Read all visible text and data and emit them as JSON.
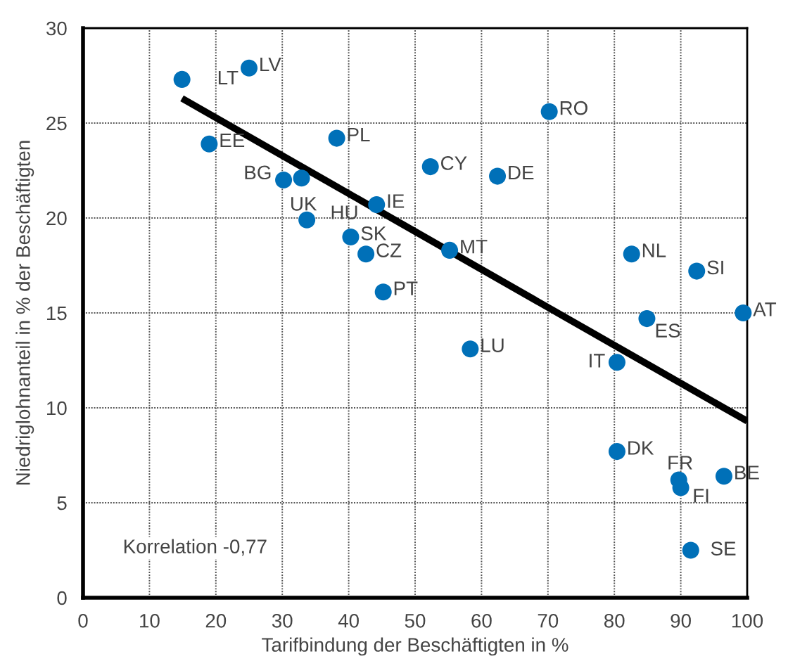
{
  "chart_data": {
    "type": "scatter",
    "xlabel": "Tarifbindung der Beschäftigten in %",
    "ylabel": "Niedriglohnanteil in % der Beschäftigten",
    "xlim": [
      0,
      100
    ],
    "ylim": [
      0,
      30
    ],
    "xticks": [
      0,
      10,
      20,
      30,
      40,
      50,
      60,
      70,
      80,
      90,
      100
    ],
    "yticks": [
      0,
      5,
      10,
      15,
      20,
      25,
      30
    ],
    "grid": true,
    "marker": "circle",
    "series": [
      {
        "color": "#0070b8",
        "x": [
          14.9,
          25.0,
          19.0,
          38.2,
          30.2,
          32.9,
          33.7,
          44.2,
          40.3,
          42.6,
          45.2,
          52.3,
          62.4,
          70.2,
          55.2,
          58.3,
          82.6,
          92.4,
          99.4,
          84.9,
          80.4,
          80.4,
          89.7,
          90.0,
          96.5,
          91.5
        ],
        "values": [
          27.3,
          27.9,
          23.9,
          24.2,
          22.0,
          22.1,
          19.9,
          20.7,
          19.0,
          18.1,
          16.1,
          22.7,
          22.2,
          25.6,
          18.3,
          13.1,
          18.1,
          17.2,
          15.0,
          14.7,
          12.4,
          7.7,
          6.2,
          5.8,
          6.4,
          2.5
        ]
      },
      {
        "type": "line",
        "color": "#000000",
        "x": [
          14.9,
          100
        ],
        "values": [
          26.3,
          9.3
        ],
        "marker": "none"
      }
    ],
    "annotations": [
      {
        "text": "LT",
        "x": 14.9,
        "y": 27.3
      },
      {
        "text": "LV",
        "x": 25.0,
        "y": 27.9
      },
      {
        "text": "EE",
        "x": 19.0,
        "y": 23.9
      },
      {
        "text": "PL",
        "x": 38.2,
        "y": 24.2
      },
      {
        "text": "BG",
        "x": 30.2,
        "y": 22.0
      },
      {
        "text": "UK",
        "x": 32.9,
        "y": 22.1
      },
      {
        "text": "HU",
        "x": 33.7,
        "y": 19.9
      },
      {
        "text": "IE",
        "x": 44.2,
        "y": 20.7
      },
      {
        "text": "SK",
        "x": 40.3,
        "y": 19.0
      },
      {
        "text": "CZ",
        "x": 42.6,
        "y": 18.1
      },
      {
        "text": "PT",
        "x": 45.2,
        "y": 16.1
      },
      {
        "text": "CY",
        "x": 52.3,
        "y": 22.7
      },
      {
        "text": "DE",
        "x": 62.4,
        "y": 22.2
      },
      {
        "text": "RO",
        "x": 70.2,
        "y": 25.6
      },
      {
        "text": "MT",
        "x": 55.2,
        "y": 18.3
      },
      {
        "text": "LU",
        "x": 58.3,
        "y": 13.1
      },
      {
        "text": "NL",
        "x": 82.6,
        "y": 18.1
      },
      {
        "text": "SI",
        "x": 92.4,
        "y": 17.2
      },
      {
        "text": "AT",
        "x": 99.4,
        "y": 15.0
      },
      {
        "text": "ES",
        "x": 84.9,
        "y": 14.7
      },
      {
        "text": "IT",
        "x": 80.4,
        "y": 12.4
      },
      {
        "text": "DK",
        "x": 80.4,
        "y": 7.7
      },
      {
        "text": "FR",
        "x": 89.7,
        "y": 6.2
      },
      {
        "text": "FI",
        "x": 90.0,
        "y": 5.8
      },
      {
        "text": "BE",
        "x": 96.5,
        "y": 6.4
      },
      {
        "text": "SE",
        "x": 91.5,
        "y": 2.5
      },
      "Korrelation -0,77"
    ]
  }
}
